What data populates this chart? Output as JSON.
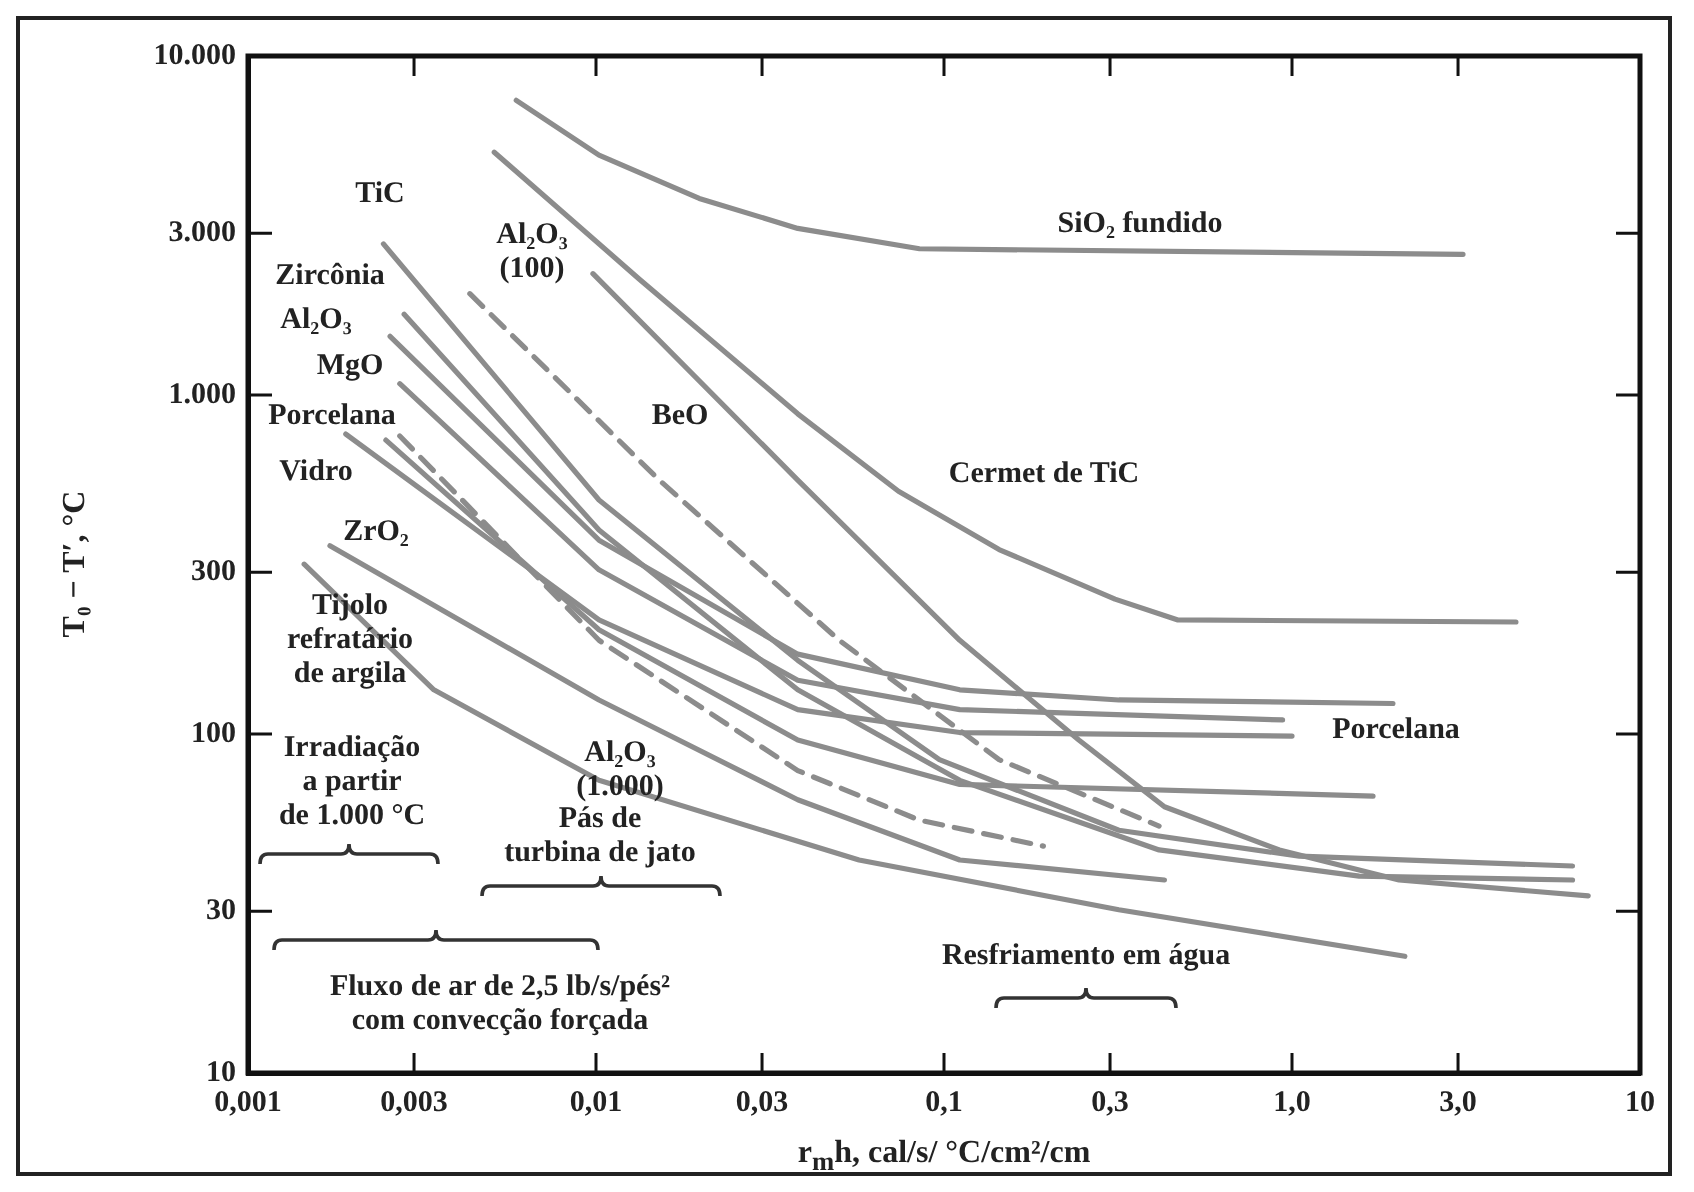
{
  "chart_data": {
    "type": "line",
    "xlabel": "r$_{m}$h, cal/s/    °C/cm²/cm",
    "ylabel": "T₀ − T′, °C",
    "log": "xy",
    "marker": "none",
    "xlim": [
      0.001,
      10
    ],
    "ylim": [
      10,
      10000
    ],
    "xticks": [
      {
        "value": 0.001,
        "label": "0,001"
      },
      {
        "value": 0.003,
        "label": "0,003"
      },
      {
        "value": 0.01,
        "label": "0,01"
      },
      {
        "value": 0.03,
        "label": "0,03"
      },
      {
        "value": 0.1,
        "label": "0,1"
      },
      {
        "value": 0.3,
        "label": "0,3"
      },
      {
        "value": 1,
        "label": "1,0"
      },
      {
        "value": 3,
        "label": "3,0"
      },
      10
    ],
    "yticks": [
      10,
      30,
      100,
      300,
      {
        "value": 1000,
        "label": "1.000"
      },
      {
        "value": 3000,
        "label": "3.000"
      },
      {
        "value": 10000,
        "label": "10.000"
      }
    ],
    "series": [
      {
        "color": "#8c8c8c",
        "x": [
          0.0059,
          0.0102,
          0.0198,
          0.038,
          0.085,
          3.1
        ],
        "values": [
          7400,
          5100,
          3800,
          3100,
          2700,
          2600
        ]
      },
      {
        "color": "#8c8c8c",
        "x": [
          0.0051,
          0.0133,
          0.038,
          0.074,
          0.144,
          0.31,
          0.47,
          4.4
        ],
        "values": [
          5200,
          2200,
          880,
          520,
          350,
          250,
          217,
          214
        ]
      },
      {
        "color": "#8c8c8c",
        "x": [
          0.0098,
          0.038,
          0.111,
          0.244,
          0.43,
          0.92,
          2.03,
          7.1
        ],
        "values": [
          2280,
          561,
          189,
          96,
          61,
          45.5,
          37.1,
          33.3
        ]
      },
      {
        "color": "#8c8c8c",
        "x": [
          0.00245,
          0.0102,
          0.038,
          0.097,
          0.318,
          1.05,
          6.4
        ],
        "values": [
          2790,
          490,
          165,
          84,
          52,
          43.6,
          40.8
        ]
      },
      {
        "color": "#8c8c8c",
        "x": [
          0.00281,
          0.0102,
          0.038,
          0.111,
          0.415,
          1.56,
          6.4
        ],
        "values": [
          1730,
          400,
          135,
          73,
          45.5,
          38.1,
          37.1
        ]
      },
      {
        "color": "#8c8c8c",
        "line_style": "dashed",
        "x": [
          0.00434,
          0.0152,
          0.05,
          0.144,
          0.415
        ],
        "values": [
          1990,
          561,
          189,
          84,
          53.5
        ]
      },
      {
        "color": "#8c8c8c",
        "x": [
          0.00256,
          0.0102,
          0.038,
          0.111,
          0.318,
          1.95
        ],
        "values": [
          1490,
          373,
          172,
          135,
          126,
          123
        ]
      },
      {
        "color": "#8c8c8c",
        "x": [
          0.00273,
          0.0102,
          0.038,
          0.111,
          0.94
        ],
        "values": [
          1080,
          305,
          144,
          118,
          110
        ]
      },
      {
        "color": "#8c8c8c",
        "x": [
          0.00191,
          0.0102,
          0.038,
          0.111,
          1.0
        ],
        "values": [
          767,
          217,
          118,
          101,
          98.6
        ]
      },
      {
        "color": "#8c8c8c",
        "line_style": "dashed",
        "x": [
          0.00273,
          0.0102,
          0.038,
          0.085,
          0.193
        ],
        "values": [
          757,
          189,
          78,
          55.7,
          46.7
        ]
      },
      {
        "color": "#8c8c8c",
        "x": [
          0.00249,
          0.0102,
          0.038,
          0.111,
          1.71
        ],
        "values": [
          736,
          203,
          96,
          71,
          65.6
        ]
      },
      {
        "color": "#8c8c8c",
        "x": [
          0.00172,
          0.0102,
          0.038,
          0.111,
          0.43
        ],
        "values": [
          359,
          126,
          64,
          42.5,
          37.1
        ]
      },
      {
        "color": "#8c8c8c",
        "x": [
          0.00145,
          0.00342,
          0.0102,
          0.057,
          0.318,
          2.11
        ],
        "values": [
          317,
          135,
          73,
          42.5,
          30.3,
          22.1
        ]
      }
    ],
    "annotations": [
      "SiO₂ fundido",
      "Cermet de TiC",
      "TiC",
      "Al₂O₃\n(100)",
      "Zircônia",
      "Al₂O₃",
      "MgO",
      "Porcelana",
      "Vidro",
      "ZrO₂",
      "Tijolo\nrefratário\nde argila",
      "BeO",
      "Porcelana",
      "Al₂O₃\n(1.000)",
      "Irradiação\na partir\nde 1.000 °C",
      "Pás de\nturbina de jato",
      "Fluxo de ar de 2,5 lb/s/pés²\ncom convecção forçada",
      "Resfriamento em água"
    ]
  }
}
